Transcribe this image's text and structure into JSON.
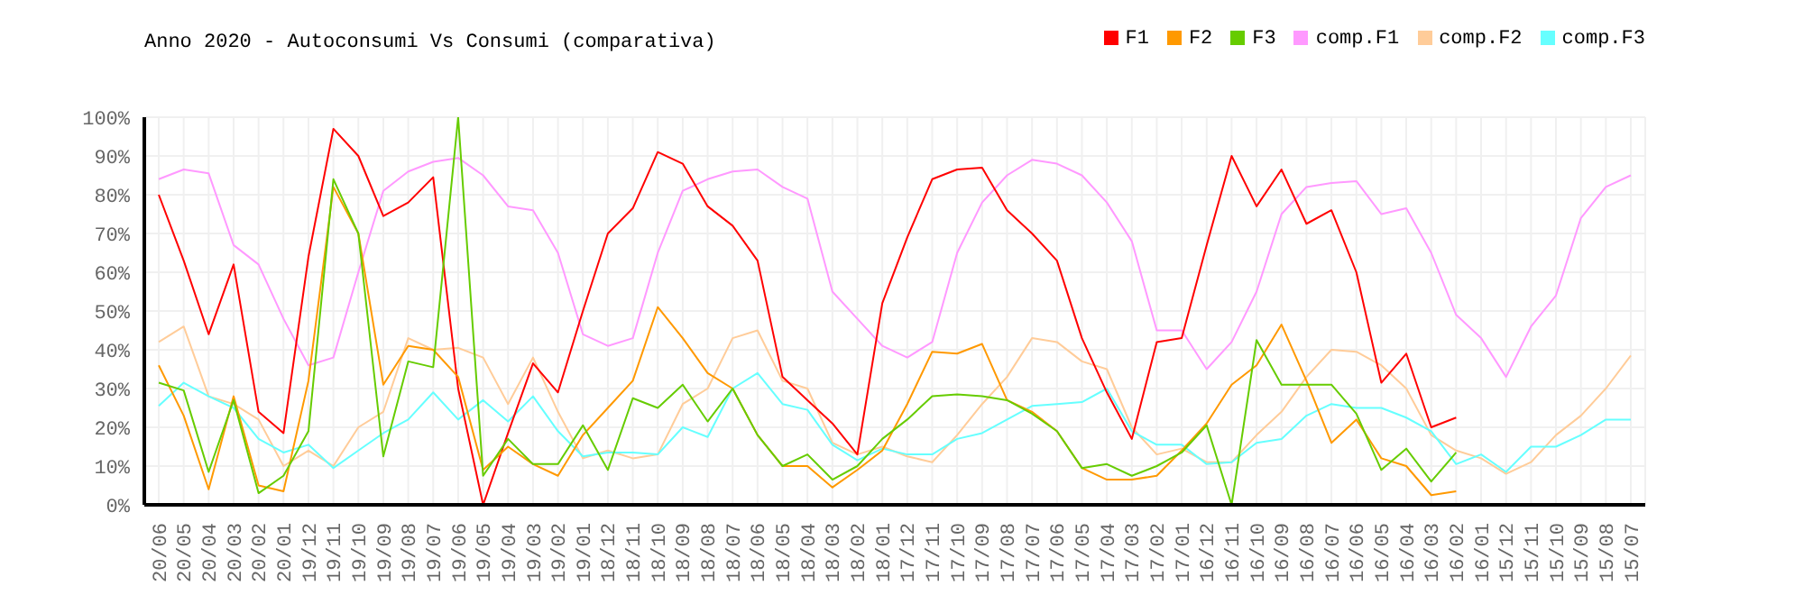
{
  "chart_data": {
    "type": "line",
    "title": "Anno 2020 - Autoconsumi Vs Consumi (comparativa)",
    "categories": [
      "20/06",
      "20/05",
      "20/04",
      "20/03",
      "20/02",
      "20/01",
      "19/12",
      "19/11",
      "19/10",
      "19/09",
      "19/08",
      "19/07",
      "19/06",
      "19/05",
      "19/04",
      "19/03",
      "19/02",
      "19/01",
      "18/12",
      "18/11",
      "18/10",
      "18/09",
      "18/08",
      "18/07",
      "18/06",
      "18/05",
      "18/04",
      "18/03",
      "18/02",
      "18/01",
      "17/12",
      "17/11",
      "17/10",
      "17/09",
      "17/08",
      "17/07",
      "17/06",
      "17/05",
      "17/04",
      "17/03",
      "17/02",
      "17/01",
      "16/12",
      "16/11",
      "16/10",
      "16/09",
      "16/08",
      "16/07",
      "16/06",
      "16/05",
      "16/04",
      "16/03",
      "16/02",
      "16/01",
      "15/12",
      "15/11",
      "15/10",
      "15/09",
      "15/08",
      "15/07"
    ],
    "series": [
      {
        "name": "comp.F1",
        "color": "#ff99ff",
        "values": [
          84,
          86.5,
          85.5,
          67,
          62,
          48,
          36,
          38,
          60,
          81,
          86,
          88.5,
          89.5,
          85,
          77,
          76,
          65,
          44,
          41,
          43,
          65,
          81,
          84,
          86,
          86.5,
          82,
          79,
          55,
          48,
          41,
          38,
          42,
          65,
          78,
          85,
          89,
          88,
          85,
          78,
          68,
          45,
          45,
          35,
          42,
          55,
          75,
          82,
          83,
          83.5,
          75,
          76.5,
          65,
          49,
          43,
          33,
          46,
          54,
          74,
          82,
          85
        ]
      },
      {
        "name": "comp.F2",
        "color": "#ffcc99",
        "values": [
          42,
          46,
          28,
          26,
          22,
          10,
          14,
          10,
          20,
          24,
          43,
          40,
          40.5,
          38,
          26,
          38,
          24,
          12,
          14,
          12,
          13,
          26,
          30,
          43,
          45,
          32,
          30,
          16,
          13,
          15,
          12.5,
          11,
          18,
          26,
          33,
          43,
          42,
          37,
          35,
          20,
          13,
          14.5,
          11,
          11,
          18,
          24,
          33,
          40,
          39.5,
          36,
          30,
          18,
          14,
          12,
          8,
          11,
          18,
          23,
          30,
          38.5
        ]
      },
      {
        "name": "comp.F3",
        "color": "#66ffff",
        "values": [
          25.5,
          31.5,
          28,
          25,
          17,
          13.5,
          15.5,
          9.5,
          14,
          18.5,
          22,
          29,
          22,
          27,
          21.5,
          28,
          19,
          12.5,
          13.5,
          13.5,
          13,
          20,
          17.5,
          30,
          34,
          26,
          24.5,
          15.5,
          11.5,
          14.5,
          13,
          13,
          17,
          18.5,
          22,
          25.5,
          26,
          26.5,
          30,
          19,
          15.5,
          15.5,
          10.5,
          11,
          16,
          17,
          23,
          26,
          25,
          25,
          22.5,
          19,
          10.5,
          13,
          8.5,
          15,
          15,
          18,
          22,
          22
        ]
      },
      {
        "name": "F1",
        "color": "#ff0000",
        "values": [
          80,
          63,
          44,
          62,
          24,
          18.5,
          64,
          97,
          90,
          74.5,
          78,
          84.5,
          30,
          0,
          18.5,
          36.5,
          29,
          50,
          70,
          76.5,
          91,
          88,
          77,
          72,
          63,
          33,
          27,
          21,
          13,
          52,
          69,
          84,
          86.5,
          87,
          76,
          70,
          63,
          43,
          29,
          17,
          42,
          43,
          67,
          90,
          77,
          86.5,
          72.5,
          76,
          60,
          31.5,
          39,
          20,
          22.5,
          null,
          null,
          null,
          null,
          null,
          null,
          null
        ]
      },
      {
        "name": "F2",
        "color": "#ff9900",
        "values": [
          36,
          23,
          4,
          28,
          5,
          3.5,
          32,
          82,
          70,
          31,
          41,
          40,
          33,
          9,
          15,
          10.5,
          7.5,
          18,
          25,
          32,
          51,
          43,
          34,
          30,
          18,
          10,
          10,
          4.5,
          9,
          14,
          26,
          39.5,
          39,
          41.5,
          27,
          24,
          19,
          9.5,
          6.5,
          6.5,
          7.5,
          14,
          21,
          31,
          36,
          46.5,
          32,
          16,
          22,
          12,
          10,
          2.5,
          3.5,
          null,
          null,
          null,
          null,
          null,
          null,
          null
        ]
      },
      {
        "name": "F3",
        "color": "#66cc00",
        "values": [
          31.5,
          29.5,
          8.5,
          27,
          3,
          7.5,
          19,
          84,
          70,
          12.5,
          37,
          35.5,
          100,
          7.5,
          17,
          10.5,
          10.5,
          20.5,
          9,
          27.5,
          25,
          31,
          21.5,
          30,
          18,
          10,
          13,
          6.5,
          10,
          17,
          22,
          28,
          28.5,
          28,
          27,
          23.5,
          19,
          9.5,
          10.5,
          7.5,
          10,
          13.5,
          20.5,
          0,
          42.5,
          31,
          31,
          31,
          23.5,
          9,
          14.5,
          6,
          13.5,
          null,
          null,
          null,
          null,
          null,
          null,
          null
        ]
      }
    ],
    "ylim": [
      0,
      100
    ],
    "yticks": [
      {
        "value": 0,
        "label": "0%"
      },
      {
        "value": 10,
        "label": "10%"
      },
      {
        "value": 20,
        "label": "20%"
      },
      {
        "value": 30,
        "label": "30%"
      },
      {
        "value": 40,
        "label": "40%"
      },
      {
        "value": 50,
        "label": "50%"
      },
      {
        "value": 60,
        "label": "60%"
      },
      {
        "value": 70,
        "label": "70%"
      },
      {
        "value": 80,
        "label": "80%"
      },
      {
        "value": 90,
        "label": "90%"
      },
      {
        "value": 100,
        "label": "100%"
      }
    ],
    "grid": true,
    "legend": "top right",
    "marker": "none",
    "line_style": "solid"
  }
}
